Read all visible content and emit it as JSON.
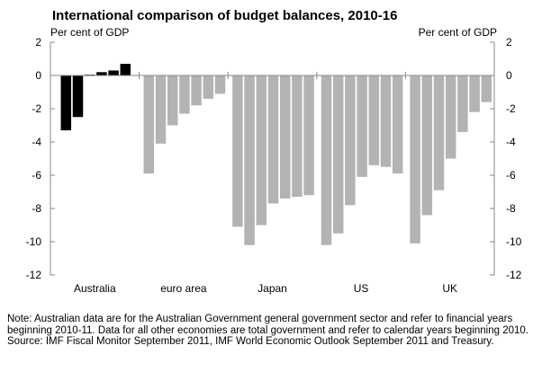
{
  "chart_data": {
    "type": "bar",
    "title": "International comparison of budget balances, 2010-16",
    "ylabel_left": "Per cent of GDP",
    "ylabel_right": "Per cent of GDP",
    "ylim": [
      -12,
      2
    ],
    "yticks": [
      2,
      0,
      -2,
      -4,
      -6,
      -8,
      -10,
      -12
    ],
    "colors": {
      "australia": "#000000",
      "others": "#b3b3b3",
      "axis": "#888888"
    },
    "groups": [
      {
        "name": "Australia",
        "color": "#000000",
        "values": [
          -3.3,
          -2.5,
          0.05,
          0.2,
          0.3,
          0.7
        ]
      },
      {
        "name": "euro area",
        "color": "#b3b3b3",
        "values": [
          -5.9,
          -4.1,
          -3.0,
          -2.3,
          -1.8,
          -1.4,
          -1.1
        ]
      },
      {
        "name": "Japan",
        "color": "#b3b3b3",
        "values": [
          -9.1,
          -10.2,
          -9.0,
          -7.7,
          -7.4,
          -7.3,
          -7.2
        ]
      },
      {
        "name": "US",
        "color": "#b3b3b3",
        "values": [
          -10.2,
          -9.5,
          -7.8,
          -6.1,
          -5.4,
          -5.5,
          -5.9
        ]
      },
      {
        "name": "UK",
        "color": "#b3b3b3",
        "values": [
          -10.1,
          -8.4,
          -6.9,
          -5.0,
          -3.4,
          -2.2,
          -1.6
        ]
      }
    ]
  },
  "footnote": {
    "note": "Note: Australian data are for the Australian Government general government sector and refer to financial years beginning 2010-11. Data for all other economies are total government and refer to calendar years beginning 2010.",
    "source": "Source: IMF Fiscal Monitor September 2011, IMF World Economic Outlook September 2011 and Treasury."
  }
}
